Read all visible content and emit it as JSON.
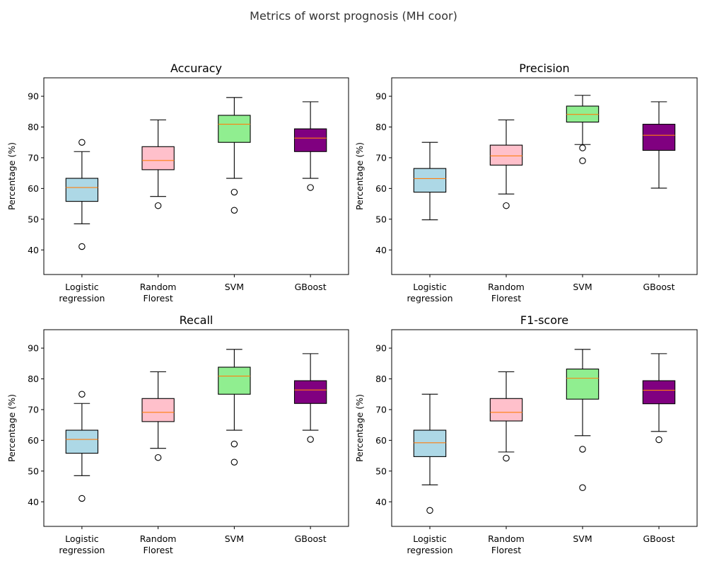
{
  "suptitle": "Metrics of worst prognosis (MH coor)",
  "chart_data": [
    {
      "type": "box",
      "title": "Accuracy",
      "ylabel": "Percentage (%)",
      "ylim": [
        32,
        96
      ],
      "yticks": [
        40,
        50,
        60,
        70,
        80,
        90
      ],
      "categories": [
        [
          "Logistic",
          "regression"
        ],
        [
          "Random",
          "Florest"
        ],
        [
          "SVM"
        ],
        [
          "GBoost"
        ]
      ],
      "colors": [
        "#add8e6",
        "#ffc0cb",
        "#90ee90",
        "#800080"
      ],
      "boxes": [
        {
          "whislo": 48.5,
          "q1": 55.8,
          "med": 60.3,
          "q3": 63.3,
          "whishi": 72.0,
          "fliers": [
            41.1,
            75.0
          ]
        },
        {
          "whislo": 57.4,
          "q1": 66.1,
          "med": 69.1,
          "q3": 73.6,
          "whishi": 82.3,
          "fliers": [
            54.4
          ]
        },
        {
          "whislo": 63.3,
          "q1": 75.0,
          "med": 80.9,
          "q3": 83.8,
          "whishi": 89.6,
          "fliers": [
            58.8,
            52.9
          ]
        },
        {
          "whislo": 63.3,
          "q1": 72.0,
          "med": 76.4,
          "q3": 79.4,
          "whishi": 88.2,
          "fliers": [
            60.3
          ]
        }
      ]
    },
    {
      "type": "box",
      "title": "Precision",
      "ylabel": "Percentage (%)",
      "ylim": [
        32,
        96
      ],
      "yticks": [
        40,
        50,
        60,
        70,
        80,
        90
      ],
      "categories": [
        [
          "Logistic",
          "regression"
        ],
        [
          "Random",
          "Florest"
        ],
        [
          "SVM"
        ],
        [
          "GBoost"
        ]
      ],
      "colors": [
        "#add8e6",
        "#ffc0cb",
        "#90ee90",
        "#800080"
      ],
      "boxes": [
        {
          "whislo": 49.8,
          "q1": 58.8,
          "med": 63.2,
          "q3": 66.5,
          "whishi": 75.0,
          "fliers": []
        },
        {
          "whislo": 58.2,
          "q1": 67.6,
          "med": 70.6,
          "q3": 74.1,
          "whishi": 82.3,
          "fliers": [
            54.4
          ]
        },
        {
          "whislo": 74.3,
          "q1": 81.6,
          "med": 84.1,
          "q3": 86.8,
          "whishi": 90.3,
          "fliers": [
            73.2,
            69.0
          ]
        },
        {
          "whislo": 60.1,
          "q1": 72.4,
          "med": 77.3,
          "q3": 80.9,
          "whishi": 88.2,
          "fliers": []
        }
      ]
    },
    {
      "type": "box",
      "title": "Recall",
      "ylabel": "Percentage (%)",
      "ylim": [
        32,
        96
      ],
      "yticks": [
        40,
        50,
        60,
        70,
        80,
        90
      ],
      "categories": [
        [
          "Logistic",
          "regression"
        ],
        [
          "Random",
          "Florest"
        ],
        [
          "SVM"
        ],
        [
          "GBoost"
        ]
      ],
      "colors": [
        "#add8e6",
        "#ffc0cb",
        "#90ee90",
        "#800080"
      ],
      "boxes": [
        {
          "whislo": 48.5,
          "q1": 55.8,
          "med": 60.3,
          "q3": 63.3,
          "whishi": 72.0,
          "fliers": [
            41.1,
            75.0
          ]
        },
        {
          "whislo": 57.4,
          "q1": 66.1,
          "med": 69.1,
          "q3": 73.6,
          "whishi": 82.3,
          "fliers": [
            54.4
          ]
        },
        {
          "whislo": 63.3,
          "q1": 75.0,
          "med": 80.9,
          "q3": 83.8,
          "whishi": 89.6,
          "fliers": [
            58.8,
            52.9
          ]
        },
        {
          "whislo": 63.3,
          "q1": 72.0,
          "med": 76.4,
          "q3": 79.4,
          "whishi": 88.2,
          "fliers": [
            60.3
          ]
        }
      ]
    },
    {
      "type": "box",
      "title": "F1-score",
      "ylabel": "Percentage (%)",
      "ylim": [
        32,
        96
      ],
      "yticks": [
        40,
        50,
        60,
        70,
        80,
        90
      ],
      "categories": [
        [
          "Logistic",
          "regression"
        ],
        [
          "Random",
          "Florest"
        ],
        [
          "SVM"
        ],
        [
          "GBoost"
        ]
      ],
      "colors": [
        "#add8e6",
        "#ffc0cb",
        "#90ee90",
        "#800080"
      ],
      "boxes": [
        {
          "whislo": 45.5,
          "q1": 54.7,
          "med": 59.2,
          "q3": 63.3,
          "whishi": 75.0,
          "fliers": [
            37.2
          ]
        },
        {
          "whislo": 56.2,
          "q1": 66.3,
          "med": 69.1,
          "q3": 73.6,
          "whishi": 82.3,
          "fliers": [
            54.2
          ]
        },
        {
          "whislo": 61.5,
          "q1": 73.4,
          "med": 80.2,
          "q3": 83.2,
          "whishi": 89.6,
          "fliers": [
            57.1,
            44.6
          ]
        },
        {
          "whislo": 62.9,
          "q1": 71.9,
          "med": 76.3,
          "q3": 79.4,
          "whishi": 88.2,
          "fliers": [
            60.2
          ]
        }
      ]
    }
  ]
}
